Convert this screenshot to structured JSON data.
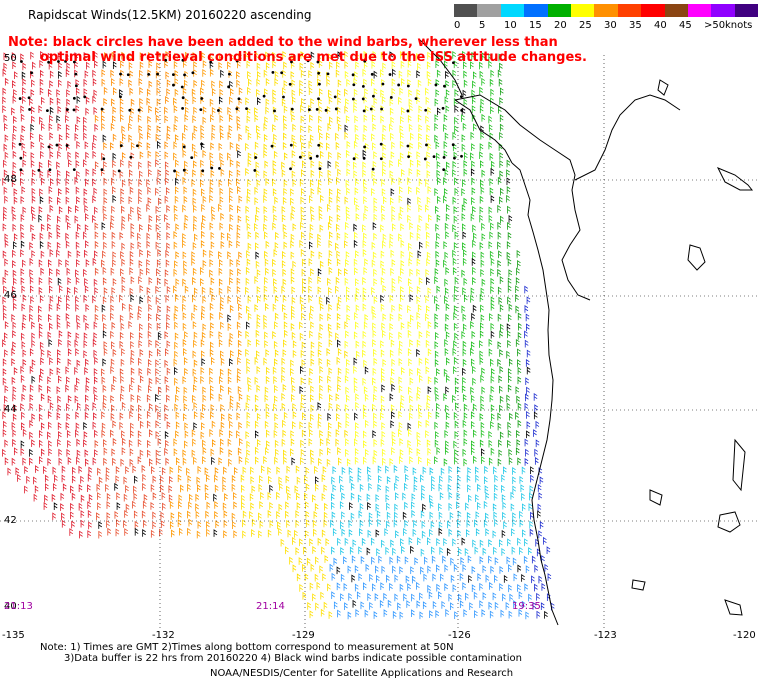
{
  "title": "Rapidscat Winds(12.5KM) 20160220 ascending",
  "note_line1": "Note: black circles have been added to the wind barbs, wherever less than",
  "note_line2": "optimal wind retrieval conditions are met due to the ISS attitude changes.",
  "legend": {
    "unit": "knots",
    "labels": [
      "0",
      "5",
      "10",
      "15",
      "20",
      "25",
      "30",
      "35",
      "40",
      "45",
      ">50"
    ],
    "colors": [
      "#505050",
      "#a0a0a0",
      "#00d8ff",
      "#0070ff",
      "#00b000",
      "#ffff00",
      "#ff9000",
      "#ff4000",
      "#ff0000",
      "#8b4513",
      "#ff00ff",
      "#9000ff",
      "#400080"
    ]
  },
  "latitude_labels": [
    "50",
    "48",
    "46",
    "44",
    "42",
    "40"
  ],
  "longitude_labels": [
    "-135",
    "-132",
    "-129",
    "-126",
    "-123",
    "-120"
  ],
  "time_labels": [
    "21:13",
    "21:14",
    "19:35"
  ],
  "footnotes": {
    "line1": "Note: 1) Times are GMT 2)Times along bottom correspond to measurement at 50N",
    "line2": "3)Data buffer is 22 hrs from 20160220 4) Black wind barbs indicate possible contamination",
    "credit": "NOAA/NESDIS/Center for Satellite Applications and Research"
  }
}
